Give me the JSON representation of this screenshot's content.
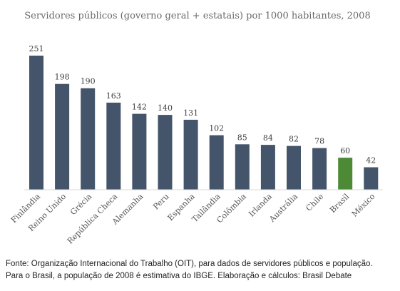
{
  "chart_data": {
    "type": "bar",
    "title": "Servidores públicos (governo geral + estatais) por 1000 habitantes, 2008",
    "categories": [
      "Finlândia",
      "Reino Unido",
      "Grécia",
      "República Checa",
      "Alemanha",
      "Peru",
      "Espanha",
      "Tailândia",
      "Colômbia",
      "Irlanda",
      "Austrália",
      "Chile",
      "Brasil",
      "México"
    ],
    "values": [
      251,
      198,
      190,
      163,
      142,
      140,
      131,
      102,
      85,
      84,
      82,
      78,
      60,
      42
    ],
    "colors": {
      "default_bar": "#44546a",
      "highlight_bar": "#4e8a36"
    },
    "highlight_category": "Brasil",
    "ylim": [
      0,
      251
    ],
    "grid": false,
    "xlabel": "",
    "ylabel": ""
  },
  "source": {
    "line1": "Fonte: Organização Internacional do Trabalho (OIT), para dados de servidores públicos e população.",
    "line2": "Para o Brasil, a população de 2008 é estimativa do IBGE. Elaboração e cálculos: Brasil Debate"
  }
}
